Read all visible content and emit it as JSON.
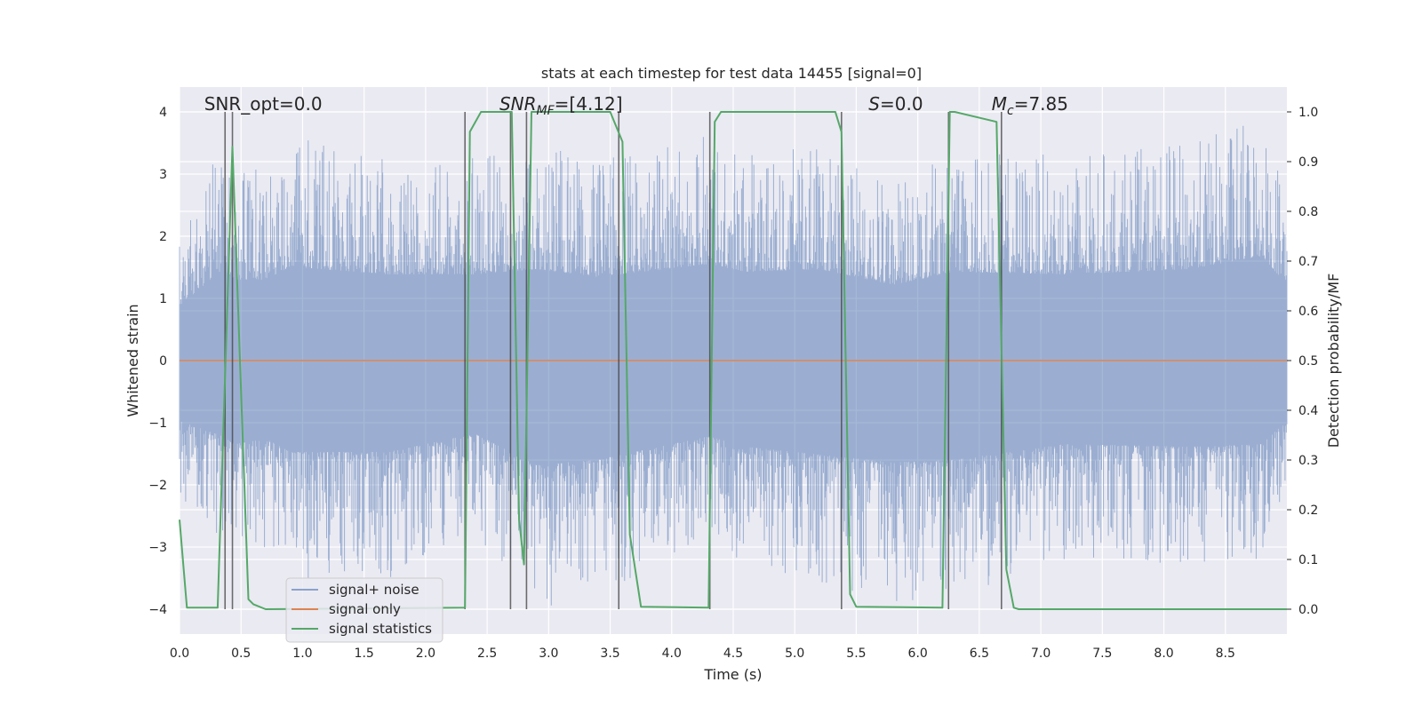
{
  "chart_data": {
    "type": "line",
    "title": "stats at each timestep for test data 14455 [signal=0]",
    "xlabel": "Time (s)",
    "ylabel_left": "Whitened strain",
    "ylabel_right": "Detection probability/MF",
    "xlim": [
      0.0,
      9.0
    ],
    "ylim_left": [
      -4.4,
      4.4
    ],
    "ylim_right": [
      -0.05,
      1.05
    ],
    "x_ticks": [
      0.0,
      0.5,
      1.0,
      1.5,
      2.0,
      2.5,
      3.0,
      3.5,
      4.0,
      4.5,
      5.0,
      5.5,
      6.0,
      6.5,
      7.0,
      7.5,
      8.0,
      8.5
    ],
    "x_tick_labels": [
      "0.0",
      "0.5",
      "1.0",
      "1.5",
      "2.0",
      "2.5",
      "3.0",
      "3.5",
      "4.0",
      "4.5",
      "5.0",
      "5.5",
      "6.0",
      "6.5",
      "7.0",
      "7.5",
      "8.0",
      "8.5"
    ],
    "y_left_ticks": [
      -4,
      -3,
      -2,
      -1,
      0,
      1,
      2,
      3,
      4
    ],
    "y_left_tick_labels": [
      "−4",
      "−3",
      "−2",
      "−1",
      "0",
      "1",
      "2",
      "3",
      "4"
    ],
    "y_right_ticks": [
      0.0,
      0.1,
      0.2,
      0.3,
      0.4,
      0.5,
      0.6,
      0.7,
      0.8,
      0.9,
      1.0
    ],
    "y_right_tick_labels": [
      "0.0",
      "0.1",
      "0.2",
      "0.3",
      "0.4",
      "0.5",
      "0.6",
      "0.7",
      "0.8",
      "0.9",
      "1.0"
    ],
    "grid": true,
    "colors": {
      "background": "#eaeaf2",
      "grid": "#ffffff",
      "signal_noise": "#4c72b0",
      "signal_only": "#dd8452",
      "statistics": "#55a868",
      "event_lines": "#404040"
    },
    "annotations": [
      {
        "text": "SNR_opt=0.0",
        "x": 0.2
      },
      {
        "text": "SNR_MF=[4.12]",
        "x": 2.6
      },
      {
        "text": "S=0.0",
        "x": 5.6
      },
      {
        "text": "M_c=7.85",
        "x": 6.6
      }
    ],
    "legend": {
      "position": "lower-left",
      "entries": [
        "signal+ noise",
        "signal only",
        "signal statistics"
      ]
    },
    "series": [
      {
        "name": "signal+ noise",
        "axis": "left",
        "kind": "noise",
        "x_range": [
          0.0,
          9.0
        ],
        "envelope": [
          {
            "x": 0.0,
            "max": 2.1,
            "min": -2.3
          },
          {
            "x": 0.35,
            "max": 3.5,
            "min": -2.9
          },
          {
            "x": 0.45,
            "max": 3.1,
            "min": -3.2
          },
          {
            "x": 0.7,
            "max": 3.1,
            "min": -3.0
          },
          {
            "x": 0.9,
            "max": 3.6,
            "min": -3.5
          },
          {
            "x": 1.7,
            "max": 3.3,
            "min": -3.5
          },
          {
            "x": 2.4,
            "max": 3.3,
            "min": -2.8
          },
          {
            "x": 2.9,
            "max": 3.5,
            "min": -4.0
          },
          {
            "x": 3.4,
            "max": 3.2,
            "min": -3.8
          },
          {
            "x": 4.3,
            "max": 3.7,
            "min": -2.9
          },
          {
            "x": 4.6,
            "max": 3.4,
            "min": -3.3
          },
          {
            "x": 5.2,
            "max": 3.5,
            "min": -3.6
          },
          {
            "x": 5.8,
            "max": 2.9,
            "min": -3.9
          },
          {
            "x": 6.3,
            "max": 3.4,
            "min": -3.8
          },
          {
            "x": 7.2,
            "max": 3.3,
            "min": -3.2
          },
          {
            "x": 8.2,
            "max": 3.5,
            "min": -3.3
          },
          {
            "x": 8.8,
            "max": 4.0,
            "min": -3.2
          },
          {
            "x": 9.0,
            "max": 2.9,
            "min": -2.3
          }
        ]
      },
      {
        "name": "signal only",
        "axis": "left",
        "x": [
          0.0,
          9.0
        ],
        "values": [
          0.0,
          0.0
        ]
      },
      {
        "name": "signal statistics",
        "axis": "right",
        "x": [
          0.0,
          0.06,
          0.31,
          0.43,
          0.56,
          0.6,
          0.7,
          2.32,
          2.36,
          2.45,
          2.7,
          2.76,
          2.8,
          2.86,
          3.5,
          3.6,
          3.66,
          3.75,
          4.3,
          4.35,
          4.4,
          5.33,
          5.38,
          5.45,
          5.5,
          6.2,
          6.26,
          6.3,
          6.64,
          6.72,
          6.78,
          6.82,
          9.0
        ],
        "values": [
          0.18,
          0.003,
          0.003,
          0.93,
          0.02,
          0.01,
          0.0,
          0.003,
          0.96,
          1.0,
          1.0,
          0.18,
          0.09,
          1.0,
          1.0,
          0.94,
          0.15,
          0.005,
          0.003,
          0.98,
          1.0,
          1.0,
          0.96,
          0.03,
          0.005,
          0.003,
          1.0,
          1.0,
          0.98,
          0.08,
          0.003,
          0.0,
          0.0
        ]
      }
    ],
    "vertical_lines_x": [
      0.37,
      0.43,
      2.32,
      2.69,
      2.82,
      3.57,
      4.31,
      5.38,
      6.25,
      6.68
    ]
  }
}
